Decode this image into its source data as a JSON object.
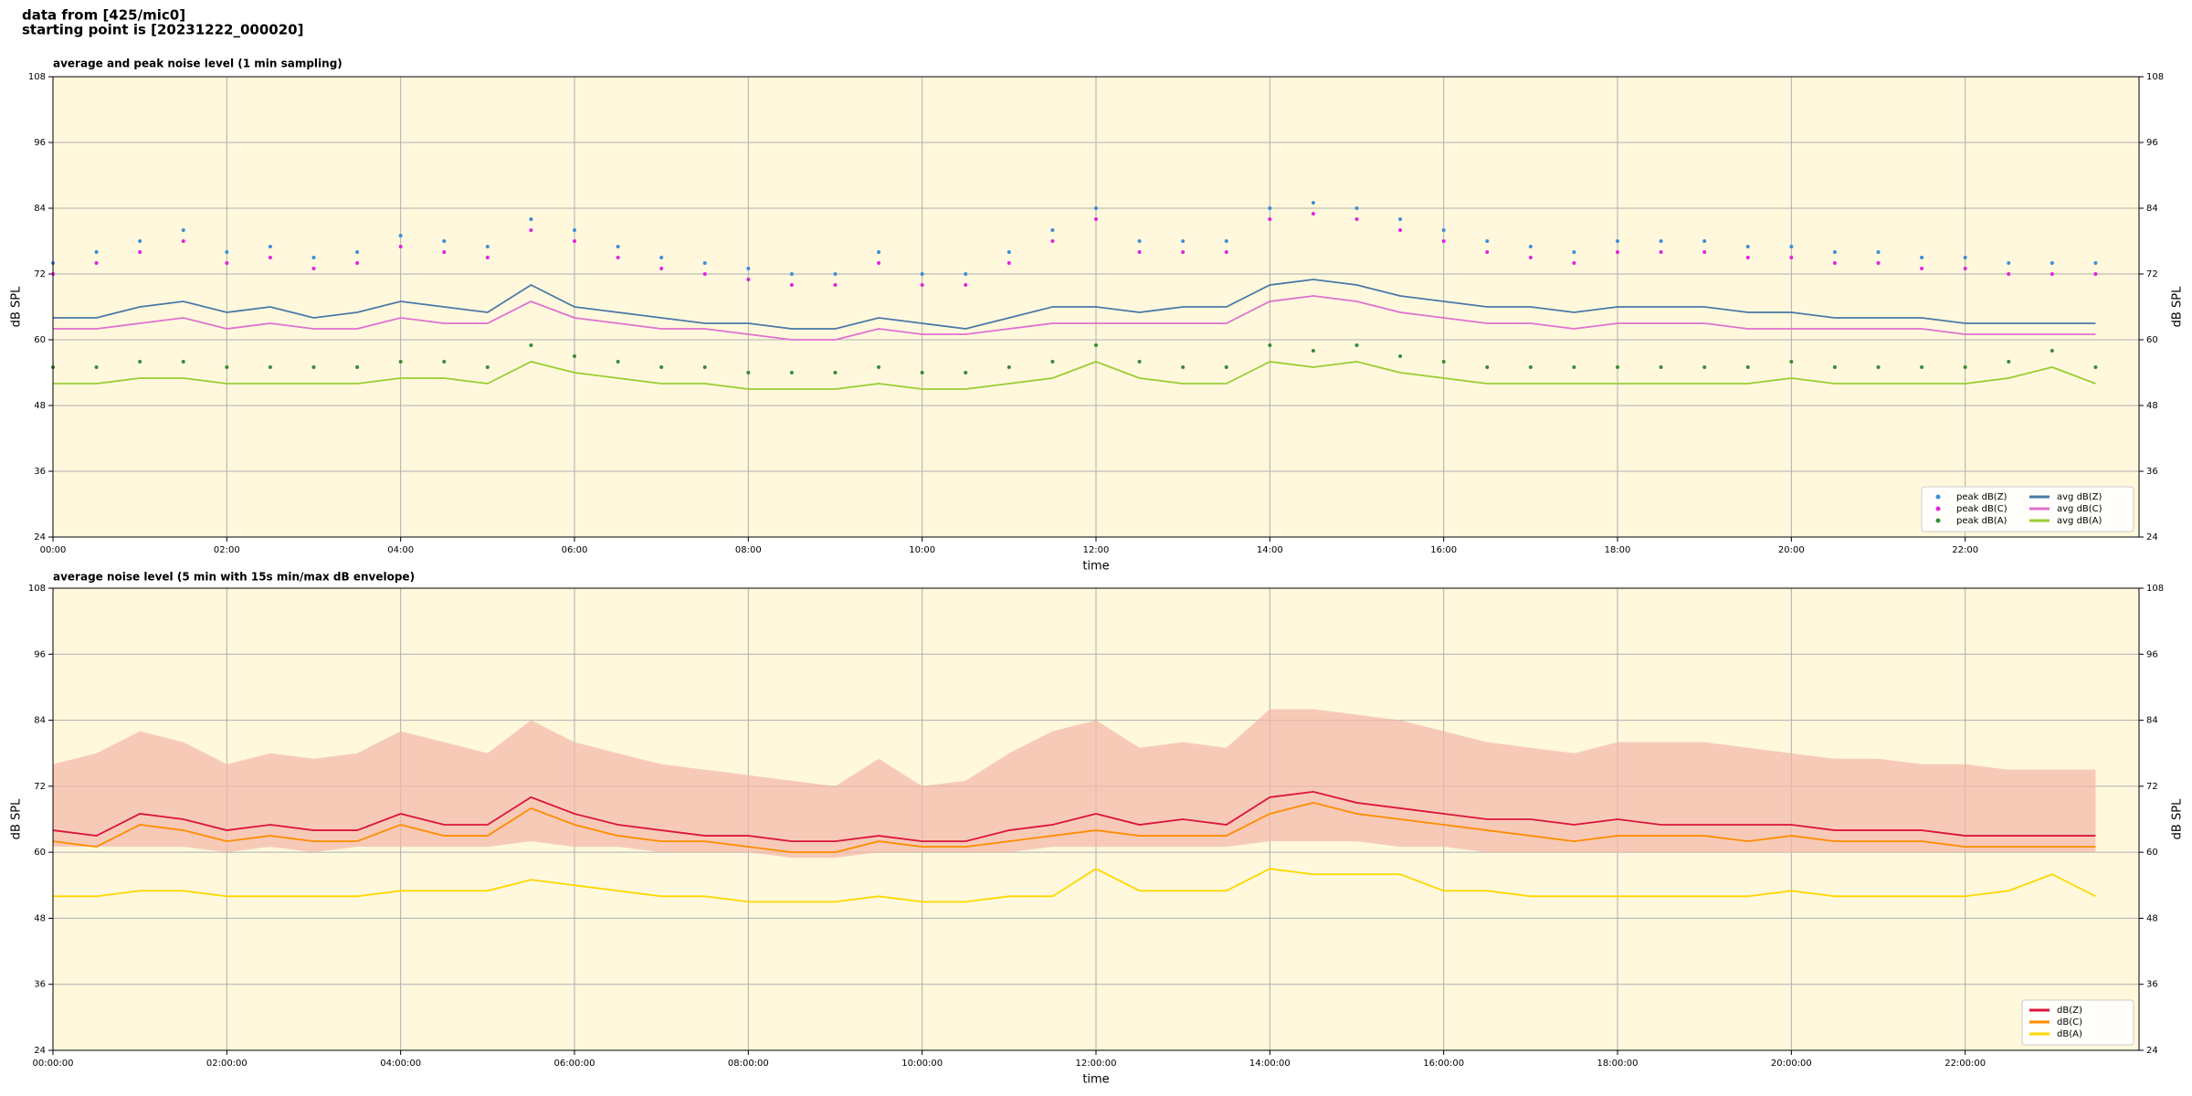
{
  "header": [
    "data from [425/mic0]",
    "starting point is [20231222_000020]"
  ],
  "chart_data": [
    {
      "type": "line",
      "title": "average and peak noise level (1 min sampling)",
      "xlabel": "time",
      "ylabel": "dB SPL",
      "background": "#fff8dc",
      "grid": true,
      "legend": "lower right",
      "legend_columns": 2,
      "xlim": [
        0,
        24
      ],
      "ylim": [
        24,
        108
      ],
      "xticks": [
        {
          "value": 0,
          "label": "00:00"
        },
        {
          "value": 2,
          "label": "02:00"
        },
        {
          "value": 4,
          "label": "04:00"
        },
        {
          "value": 6,
          "label": "06:00"
        },
        {
          "value": 8,
          "label": "08:00"
        },
        {
          "value": 10,
          "label": "10:00"
        },
        {
          "value": 12,
          "label": "12:00"
        },
        {
          "value": 14,
          "label": "14:00"
        },
        {
          "value": 16,
          "label": "16:00"
        },
        {
          "value": 18,
          "label": "18:00"
        },
        {
          "value": 20,
          "label": "20:00"
        },
        {
          "value": 22,
          "label": "22:00"
        }
      ],
      "yticks": [
        24,
        36,
        48,
        60,
        72,
        84,
        96,
        108
      ],
      "x": [
        0,
        0.5,
        1,
        1.5,
        2,
        2.5,
        3,
        3.5,
        4,
        4.5,
        5,
        5.5,
        6,
        6.5,
        7,
        7.5,
        8,
        8.5,
        9,
        9.5,
        10,
        10.5,
        11,
        11.5,
        12,
        12.5,
        13,
        13.5,
        14,
        14.5,
        15,
        15.5,
        16,
        16.5,
        17,
        17.5,
        18,
        18.5,
        19,
        19.5,
        20,
        20.5,
        21,
        21.5,
        22,
        22.5,
        23,
        23.5
      ],
      "series": [
        {
          "name": "peak dB(Z)",
          "style": "scatter",
          "color": "#3b8fd9",
          "values": [
            74,
            76,
            78,
            80,
            76,
            77,
            75,
            76,
            79,
            78,
            77,
            82,
            80,
            77,
            75,
            74,
            73,
            72,
            72,
            76,
            72,
            72,
            76,
            80,
            84,
            78,
            78,
            78,
            84,
            85,
            84,
            82,
            80,
            78,
            77,
            76,
            78,
            78,
            78,
            77,
            77,
            76,
            76,
            75,
            75,
            74,
            74,
            74
          ]
        },
        {
          "name": "peak dB(C)",
          "style": "scatter",
          "color": "#e024e0",
          "values": [
            72,
            74,
            76,
            78,
            74,
            75,
            73,
            74,
            77,
            76,
            75,
            80,
            78,
            75,
            73,
            72,
            71,
            70,
            70,
            74,
            70,
            70,
            74,
            78,
            82,
            76,
            76,
            76,
            82,
            83,
            82,
            80,
            78,
            76,
            75,
            74,
            76,
            76,
            76,
            75,
            75,
            74,
            74,
            73,
            73,
            72,
            72,
            72
          ]
        },
        {
          "name": "peak dB(A)",
          "style": "scatter",
          "color": "#3a8a3a",
          "values": [
            55,
            55,
            56,
            56,
            55,
            55,
            55,
            55,
            56,
            56,
            55,
            59,
            57,
            56,
            55,
            55,
            54,
            54,
            54,
            55,
            54,
            54,
            55,
            56,
            59,
            56,
            55,
            55,
            59,
            58,
            59,
            57,
            56,
            55,
            55,
            55,
            55,
            55,
            55,
            55,
            56,
            55,
            55,
            55,
            55,
            56,
            58,
            55
          ]
        },
        {
          "name": "avg dB(Z)",
          "style": "line",
          "color": "#4a78a8",
          "values": [
            64,
            64,
            66,
            67,
            65,
            66,
            64,
            65,
            67,
            66,
            65,
            70,
            66,
            65,
            64,
            63,
            63,
            62,
            62,
            64,
            63,
            62,
            64,
            66,
            66,
            65,
            66,
            66,
            70,
            71,
            70,
            68,
            67,
            66,
            66,
            65,
            66,
            66,
            66,
            65,
            65,
            64,
            64,
            64,
            63,
            63,
            63,
            63
          ]
        },
        {
          "name": "avg dB(C)",
          "style": "line",
          "color": "#e070d0",
          "values": [
            62,
            62,
            63,
            64,
            62,
            63,
            62,
            62,
            64,
            63,
            63,
            67,
            64,
            63,
            62,
            62,
            61,
            60,
            60,
            62,
            61,
            61,
            62,
            63,
            63,
            63,
            63,
            63,
            67,
            68,
            67,
            65,
            64,
            63,
            63,
            62,
            63,
            63,
            63,
            62,
            62,
            62,
            62,
            62,
            61,
            61,
            61,
            61
          ]
        },
        {
          "name": "avg dB(A)",
          "style": "line",
          "color": "#9acd32",
          "values": [
            52,
            52,
            53,
            53,
            52,
            52,
            52,
            52,
            53,
            53,
            52,
            56,
            54,
            53,
            52,
            52,
            51,
            51,
            51,
            52,
            51,
            51,
            52,
            53,
            56,
            53,
            52,
            52,
            56,
            55,
            56,
            54,
            53,
            52,
            52,
            52,
            52,
            52,
            52,
            52,
            53,
            52,
            52,
            52,
            52,
            53,
            55,
            52
          ]
        }
      ]
    },
    {
      "type": "line",
      "title": "average noise level (5 min with 15s min/max dB envelope)",
      "xlabel": "time",
      "ylabel": "dB SPL",
      "background": "#fff8dc",
      "grid": true,
      "legend": "lower right",
      "legend_columns": 1,
      "xlim": [
        0,
        24
      ],
      "ylim": [
        24,
        108
      ],
      "xticks": [
        {
          "value": 0,
          "label": "00:00:00"
        },
        {
          "value": 2,
          "label": "02:00:00"
        },
        {
          "value": 4,
          "label": "04:00:00"
        },
        {
          "value": 6,
          "label": "06:00:00"
        },
        {
          "value": 8,
          "label": "08:00:00"
        },
        {
          "value": 10,
          "label": "10:00:00"
        },
        {
          "value": 12,
          "label": "12:00:00"
        },
        {
          "value": 14,
          "label": "14:00:00"
        },
        {
          "value": 16,
          "label": "16:00:00"
        },
        {
          "value": 18,
          "label": "18:00:00"
        },
        {
          "value": 20,
          "label": "20:00:00"
        },
        {
          "value": 22,
          "label": "22:00:00"
        }
      ],
      "yticks": [
        24,
        36,
        48,
        60,
        72,
        84,
        96,
        108
      ],
      "x": [
        0,
        0.5,
        1,
        1.5,
        2,
        2.5,
        3,
        3.5,
        4,
        4.5,
        5,
        5.5,
        6,
        6.5,
        7,
        7.5,
        8,
        8.5,
        9,
        9.5,
        10,
        10.5,
        11,
        11.5,
        12,
        12.5,
        13,
        13.5,
        14,
        14.5,
        15,
        15.5,
        16,
        16.5,
        17,
        17.5,
        18,
        18.5,
        19,
        19.5,
        20,
        20.5,
        21,
        21.5,
        22,
        22.5,
        23,
        23.5
      ],
      "envelope": {
        "color": "#f4b6a6",
        "upper": [
          76,
          78,
          82,
          80,
          76,
          78,
          77,
          78,
          82,
          80,
          78,
          84,
          80,
          78,
          76,
          75,
          74,
          73,
          72,
          77,
          72,
          73,
          78,
          82,
          84,
          79,
          80,
          79,
          86,
          86,
          85,
          84,
          82,
          80,
          79,
          78,
          80,
          80,
          80,
          79,
          78,
          77,
          77,
          76,
          76,
          75,
          75,
          75
        ],
        "lower": [
          61,
          61,
          61,
          61,
          60,
          61,
          60,
          61,
          61,
          61,
          61,
          62,
          61,
          61,
          60,
          60,
          60,
          59,
          59,
          60,
          60,
          60,
          60,
          61,
          61,
          61,
          61,
          61,
          62,
          62,
          62,
          61,
          61,
          60,
          60,
          60,
          60,
          60,
          60,
          60,
          60,
          60,
          60,
          60,
          60,
          60,
          60,
          60
        ]
      },
      "series": [
        {
          "name": "dB(Z)",
          "style": "line",
          "color": "#dc143c",
          "values": [
            64,
            63,
            67,
            66,
            64,
            65,
            64,
            64,
            67,
            65,
            65,
            70,
            67,
            65,
            64,
            63,
            63,
            62,
            62,
            63,
            62,
            62,
            64,
            65,
            67,
            65,
            66,
            65,
            70,
            71,
            69,
            68,
            67,
            66,
            66,
            65,
            66,
            65,
            65,
            65,
            65,
            64,
            64,
            64,
            63,
            63,
            63,
            63
          ]
        },
        {
          "name": "dB(C)",
          "style": "line",
          "color": "#ff8c00",
          "values": [
            62,
            61,
            65,
            64,
            62,
            63,
            62,
            62,
            65,
            63,
            63,
            68,
            65,
            63,
            62,
            62,
            61,
            60,
            60,
            62,
            61,
            61,
            62,
            63,
            64,
            63,
            63,
            63,
            67,
            69,
            67,
            66,
            65,
            64,
            63,
            62,
            63,
            63,
            63,
            62,
            63,
            62,
            62,
            62,
            61,
            61,
            61,
            61
          ]
        },
        {
          "name": "dB(A)",
          "style": "line",
          "color": "#ffd700",
          "values": [
            52,
            52,
            53,
            53,
            52,
            52,
            52,
            52,
            53,
            53,
            53,
            55,
            54,
            53,
            52,
            52,
            51,
            51,
            51,
            52,
            51,
            51,
            52,
            52,
            57,
            53,
            53,
            53,
            57,
            56,
            56,
            56,
            53,
            53,
            52,
            52,
            52,
            52,
            52,
            52,
            53,
            52,
            52,
            52,
            52,
            53,
            56,
            52
          ]
        }
      ]
    }
  ]
}
